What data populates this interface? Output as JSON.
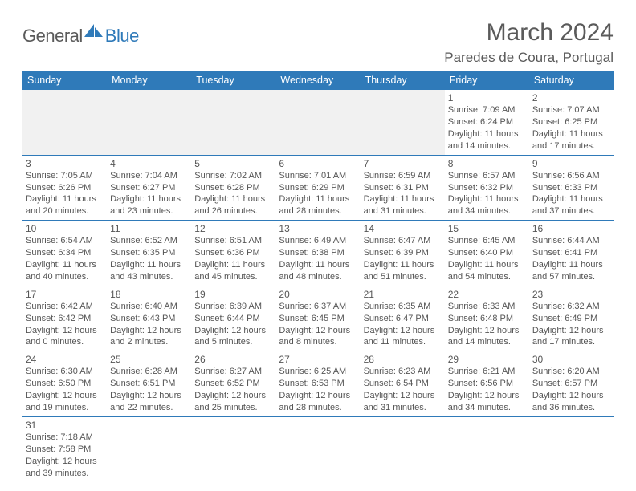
{
  "brand": {
    "general": "General",
    "blue": "Blue"
  },
  "title": "March 2024",
  "location": "Paredes de Coura, Portugal",
  "headers": [
    "Sunday",
    "Monday",
    "Tuesday",
    "Wednesday",
    "Thursday",
    "Friday",
    "Saturday"
  ],
  "colors": {
    "header_bg": "#2f7ab9",
    "header_fg": "#ffffff",
    "rule": "#2f7ab9",
    "empty_bg": "#f1f1f1"
  },
  "weeks": [
    [
      null,
      null,
      null,
      null,
      null,
      {
        "n": "1",
        "sr": "Sunrise: 7:09 AM",
        "ss": "Sunset: 6:24 PM",
        "dl": "Daylight: 11 hours and 14 minutes."
      },
      {
        "n": "2",
        "sr": "Sunrise: 7:07 AM",
        "ss": "Sunset: 6:25 PM",
        "dl": "Daylight: 11 hours and 17 minutes."
      }
    ],
    [
      {
        "n": "3",
        "sr": "Sunrise: 7:05 AM",
        "ss": "Sunset: 6:26 PM",
        "dl": "Daylight: 11 hours and 20 minutes."
      },
      {
        "n": "4",
        "sr": "Sunrise: 7:04 AM",
        "ss": "Sunset: 6:27 PM",
        "dl": "Daylight: 11 hours and 23 minutes."
      },
      {
        "n": "5",
        "sr": "Sunrise: 7:02 AM",
        "ss": "Sunset: 6:28 PM",
        "dl": "Daylight: 11 hours and 26 minutes."
      },
      {
        "n": "6",
        "sr": "Sunrise: 7:01 AM",
        "ss": "Sunset: 6:29 PM",
        "dl": "Daylight: 11 hours and 28 minutes."
      },
      {
        "n": "7",
        "sr": "Sunrise: 6:59 AM",
        "ss": "Sunset: 6:31 PM",
        "dl": "Daylight: 11 hours and 31 minutes."
      },
      {
        "n": "8",
        "sr": "Sunrise: 6:57 AM",
        "ss": "Sunset: 6:32 PM",
        "dl": "Daylight: 11 hours and 34 minutes."
      },
      {
        "n": "9",
        "sr": "Sunrise: 6:56 AM",
        "ss": "Sunset: 6:33 PM",
        "dl": "Daylight: 11 hours and 37 minutes."
      }
    ],
    [
      {
        "n": "10",
        "sr": "Sunrise: 6:54 AM",
        "ss": "Sunset: 6:34 PM",
        "dl": "Daylight: 11 hours and 40 minutes."
      },
      {
        "n": "11",
        "sr": "Sunrise: 6:52 AM",
        "ss": "Sunset: 6:35 PM",
        "dl": "Daylight: 11 hours and 43 minutes."
      },
      {
        "n": "12",
        "sr": "Sunrise: 6:51 AM",
        "ss": "Sunset: 6:36 PM",
        "dl": "Daylight: 11 hours and 45 minutes."
      },
      {
        "n": "13",
        "sr": "Sunrise: 6:49 AM",
        "ss": "Sunset: 6:38 PM",
        "dl": "Daylight: 11 hours and 48 minutes."
      },
      {
        "n": "14",
        "sr": "Sunrise: 6:47 AM",
        "ss": "Sunset: 6:39 PM",
        "dl": "Daylight: 11 hours and 51 minutes."
      },
      {
        "n": "15",
        "sr": "Sunrise: 6:45 AM",
        "ss": "Sunset: 6:40 PM",
        "dl": "Daylight: 11 hours and 54 minutes."
      },
      {
        "n": "16",
        "sr": "Sunrise: 6:44 AM",
        "ss": "Sunset: 6:41 PM",
        "dl": "Daylight: 11 hours and 57 minutes."
      }
    ],
    [
      {
        "n": "17",
        "sr": "Sunrise: 6:42 AM",
        "ss": "Sunset: 6:42 PM",
        "dl": "Daylight: 12 hours and 0 minutes."
      },
      {
        "n": "18",
        "sr": "Sunrise: 6:40 AM",
        "ss": "Sunset: 6:43 PM",
        "dl": "Daylight: 12 hours and 2 minutes."
      },
      {
        "n": "19",
        "sr": "Sunrise: 6:39 AM",
        "ss": "Sunset: 6:44 PM",
        "dl": "Daylight: 12 hours and 5 minutes."
      },
      {
        "n": "20",
        "sr": "Sunrise: 6:37 AM",
        "ss": "Sunset: 6:45 PM",
        "dl": "Daylight: 12 hours and 8 minutes."
      },
      {
        "n": "21",
        "sr": "Sunrise: 6:35 AM",
        "ss": "Sunset: 6:47 PM",
        "dl": "Daylight: 12 hours and 11 minutes."
      },
      {
        "n": "22",
        "sr": "Sunrise: 6:33 AM",
        "ss": "Sunset: 6:48 PM",
        "dl": "Daylight: 12 hours and 14 minutes."
      },
      {
        "n": "23",
        "sr": "Sunrise: 6:32 AM",
        "ss": "Sunset: 6:49 PM",
        "dl": "Daylight: 12 hours and 17 minutes."
      }
    ],
    [
      {
        "n": "24",
        "sr": "Sunrise: 6:30 AM",
        "ss": "Sunset: 6:50 PM",
        "dl": "Daylight: 12 hours and 19 minutes."
      },
      {
        "n": "25",
        "sr": "Sunrise: 6:28 AM",
        "ss": "Sunset: 6:51 PM",
        "dl": "Daylight: 12 hours and 22 minutes."
      },
      {
        "n": "26",
        "sr": "Sunrise: 6:27 AM",
        "ss": "Sunset: 6:52 PM",
        "dl": "Daylight: 12 hours and 25 minutes."
      },
      {
        "n": "27",
        "sr": "Sunrise: 6:25 AM",
        "ss": "Sunset: 6:53 PM",
        "dl": "Daylight: 12 hours and 28 minutes."
      },
      {
        "n": "28",
        "sr": "Sunrise: 6:23 AM",
        "ss": "Sunset: 6:54 PM",
        "dl": "Daylight: 12 hours and 31 minutes."
      },
      {
        "n": "29",
        "sr": "Sunrise: 6:21 AM",
        "ss": "Sunset: 6:56 PM",
        "dl": "Daylight: 12 hours and 34 minutes."
      },
      {
        "n": "30",
        "sr": "Sunrise: 6:20 AM",
        "ss": "Sunset: 6:57 PM",
        "dl": "Daylight: 12 hours and 36 minutes."
      }
    ],
    [
      {
        "n": "31",
        "sr": "Sunrise: 7:18 AM",
        "ss": "Sunset: 7:58 PM",
        "dl": "Daylight: 12 hours and 39 minutes."
      },
      "blank",
      "blank",
      "blank",
      "blank",
      "blank",
      "blank"
    ]
  ]
}
